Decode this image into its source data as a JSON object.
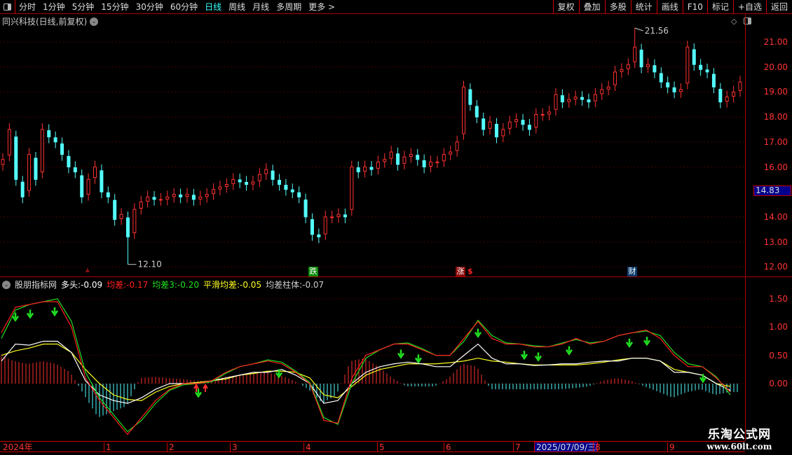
{
  "toolbar": {
    "periods": [
      "分时",
      "1分钟",
      "5分钟",
      "15分钟",
      "30分钟",
      "60分钟",
      "日线",
      "周线",
      "月线",
      "多周期",
      "更多 >"
    ],
    "active": "日线",
    "right_buttons": [
      "复权",
      "叠加",
      "多股",
      "统计",
      "画线",
      "F10",
      "标记",
      "+自选",
      "返回"
    ]
  },
  "stock": {
    "title": "同兴科技(日线,前复权)",
    "current_price": "14.83",
    "high_label": "21.56",
    "low_label": "12.10"
  },
  "badges": {
    "down": "跌",
    "up": "涨",
    "finance": "财",
    "s": "$"
  },
  "indicator": {
    "name": "股朋指标网",
    "items": [
      {
        "label": "多头:",
        "value": "-0.09",
        "color": "#ffffff"
      },
      {
        "label": "均差:",
        "value": "-0.17",
        "color": "#ff2020"
      },
      {
        "label": "均差3:",
        "value": "-0.20",
        "color": "#20e020"
      },
      {
        "label": "平滑均差:",
        "value": "-0.05",
        "color": "#ffff20"
      },
      {
        "label": "均差柱体:",
        "value": "-0.07",
        "color": "#cccccc"
      }
    ]
  },
  "xaxis": {
    "labels": [
      "2024年",
      "1",
      "2",
      "3",
      "4",
      "5",
      "6",
      "7",
      "8",
      "9"
    ],
    "cursor_date": "2025/07/09/三"
  },
  "watermark": {
    "name": "乐淘公式网",
    "url": "www.60lt.com"
  },
  "colors": {
    "up": "#ff3030",
    "down": "#54ffff",
    "axis": "#aa0000"
  },
  "chart_data": [
    {
      "type": "candlestick",
      "ylim": [
        11.8,
        21.8
      ],
      "yticks": [
        "21.00",
        "20.00",
        "19.00",
        "18.00",
        "17.00",
        "16.00",
        "14.00",
        "13.00",
        "12.00"
      ],
      "closes": [
        16.3,
        17.5,
        15.5,
        14.8,
        16.5,
        15.5,
        17.5,
        17.2,
        17.0,
        16.5,
        16.0,
        15.8,
        14.8,
        15.5,
        16.0,
        15.0,
        14.8,
        13.9,
        14.1,
        13.2,
        14.3,
        14.6,
        14.8,
        14.7,
        14.7,
        14.8,
        14.9,
        14.8,
        14.9,
        14.7,
        14.8,
        14.9,
        15.1,
        15.2,
        15.3,
        15.5,
        15.4,
        15.3,
        15.4,
        15.7,
        15.9,
        15.5,
        15.3,
        15.1,
        15.0,
        14.8,
        14.0,
        13.3,
        13.2,
        14.0,
        14.0,
        14.1,
        14.0,
        16.0,
        15.8,
        16.0,
        15.9,
        16.2,
        16.3,
        16.6,
        16.1,
        16.4,
        16.5,
        16.3,
        16.0,
        16.2,
        16.2,
        16.5,
        16.6,
        17.0,
        19.2,
        18.5,
        18.0,
        17.5,
        17.8,
        17.2,
        17.5,
        17.8,
        17.9,
        17.7,
        17.5,
        18.1,
        18.1,
        18.2,
        18.9,
        18.6,
        18.7,
        18.8,
        18.7,
        18.6,
        18.9,
        19.1,
        19.2,
        19.8,
        19.9,
        20.1,
        20.8,
        20.0,
        20.1,
        19.8,
        19.4,
        19.2,
        19.0,
        19.1,
        20.8,
        20.1,
        19.9,
        19.8,
        19.2,
        18.6,
        18.8,
        19.0,
        19.4
      ],
      "high": 21.56,
      "low": 12.1
    },
    {
      "type": "line",
      "ylim": [
        -1.0,
        1.8
      ],
      "yticks": [
        "1.50",
        "1.00",
        "0.50",
        "0.00"
      ],
      "series": [
        {
          "name": "均差",
          "color": "#ff2020",
          "values": [
            0.9,
            1.35,
            1.4,
            1.45,
            1.45,
            1.0,
            0.1,
            -0.3,
            -0.6,
            -0.9,
            -0.6,
            -0.3,
            -0.1,
            0.0,
            0.0,
            0.05,
            0.2,
            0.3,
            0.35,
            0.4,
            0.35,
            0.2,
            0.0,
            -0.65,
            -0.7,
            0.1,
            0.5,
            0.6,
            0.7,
            0.7,
            0.6,
            0.5,
            0.5,
            0.8,
            1.1,
            0.8,
            0.7,
            0.7,
            0.65,
            0.65,
            0.7,
            0.8,
            0.7,
            0.75,
            0.85,
            0.9,
            0.95,
            0.8,
            0.5,
            0.3,
            0.3,
            0.1,
            -0.15
          ]
        },
        {
          "name": "均差3",
          "color": "#20e020",
          "values": [
            0.8,
            1.3,
            1.4,
            1.45,
            1.5,
            1.1,
            0.2,
            -0.25,
            -0.55,
            -0.85,
            -0.65,
            -0.35,
            -0.12,
            -0.02,
            0.0,
            0.03,
            0.18,
            0.3,
            0.35,
            0.42,
            0.38,
            0.22,
            0.02,
            -0.6,
            -0.72,
            0.0,
            0.45,
            0.6,
            0.7,
            0.72,
            0.62,
            0.5,
            0.5,
            0.75,
            1.12,
            0.85,
            0.72,
            0.7,
            0.67,
            0.65,
            0.72,
            0.78,
            0.72,
            0.75,
            0.85,
            0.9,
            0.93,
            0.85,
            0.55,
            0.35,
            0.3,
            0.12,
            -0.2
          ]
        },
        {
          "name": "多头",
          "color": "#ffffff",
          "values": [
            0.4,
            0.7,
            0.68,
            0.75,
            0.75,
            0.55,
            0.05,
            -0.2,
            -0.3,
            -0.35,
            -0.25,
            -0.1,
            0.0,
            0.0,
            0.0,
            0.05,
            0.1,
            0.15,
            0.2,
            0.2,
            0.25,
            0.15,
            0.0,
            -0.35,
            -0.3,
            0.0,
            0.2,
            0.3,
            0.35,
            0.38,
            0.35,
            0.3,
            0.3,
            0.5,
            0.7,
            0.45,
            0.35,
            0.35,
            0.32,
            0.33,
            0.35,
            0.35,
            0.38,
            0.4,
            0.4,
            0.45,
            0.45,
            0.4,
            0.2,
            0.2,
            0.15,
            0.0,
            -0.12
          ]
        },
        {
          "name": "平滑均差",
          "color": "#ffff20",
          "values": [
            0.5,
            0.58,
            0.63,
            0.7,
            0.7,
            0.55,
            0.25,
            0.0,
            -0.2,
            -0.28,
            -0.3,
            -0.15,
            -0.05,
            0.0,
            0.02,
            0.05,
            0.08,
            0.15,
            0.18,
            0.22,
            0.22,
            0.2,
            0.1,
            -0.2,
            -0.25,
            -0.05,
            0.15,
            0.25,
            0.3,
            0.35,
            0.35,
            0.35,
            0.37,
            0.4,
            0.45,
            0.4,
            0.38,
            0.35,
            0.33,
            0.33,
            0.33,
            0.33,
            0.35,
            0.38,
            0.42,
            0.45,
            0.45,
            0.4,
            0.25,
            0.2,
            0.15,
            0.0,
            -0.05
          ]
        },
        {
          "name": "均差柱体",
          "type": "histogram",
          "values": [
            0.5,
            0.4,
            0.35,
            0.4,
            0.35,
            0.2,
            -0.2,
            -0.6,
            -0.5,
            -0.4,
            0.1,
            0.12,
            0.1,
            0.08,
            0.05,
            0.05,
            0.12,
            0.15,
            0.18,
            0.2,
            0.15,
            0.05,
            -0.1,
            -0.35,
            -0.2,
            0.4,
            0.45,
            0.3,
            0.1,
            -0.05,
            -0.05,
            -0.05,
            0.1,
            0.35,
            0.3,
            -0.1,
            -0.1,
            -0.1,
            -0.1,
            -0.1,
            -0.1,
            -0.08,
            -0.05,
            0.05,
            0.1,
            0.05,
            -0.05,
            -0.15,
            -0.25,
            -0.15,
            -0.1,
            -0.2,
            -0.15
          ]
        }
      ]
    }
  ]
}
